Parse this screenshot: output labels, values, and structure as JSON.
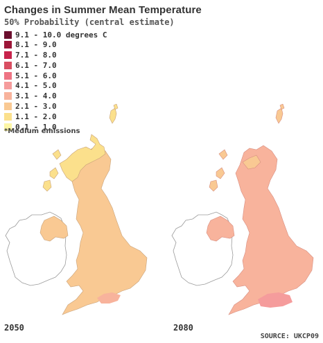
{
  "title": "Changes in Summer Mean Temperature",
  "subtitle": "50% Probability (central estimate)",
  "legend": [
    {
      "label": "9.1 - 10.0 degrees C",
      "color": "#6b0f2e"
    },
    {
      "label": "8.1 - 9.0",
      "color": "#9c1638"
    },
    {
      "label": "7.1 - 8.0",
      "color": "#c7234b"
    },
    {
      "label": "6.1 - 7.0",
      "color": "#d94e62"
    },
    {
      "label": "5.1 - 6.0",
      "color": "#ee7484"
    },
    {
      "label": "4.1 - 5.0",
      "color": "#f59c9c"
    },
    {
      "label": "3.1 - 4.0",
      "color": "#f8b39c"
    },
    {
      "label": "2.1 - 3.0",
      "color": "#f9c993"
    },
    {
      "label": "1.1 - 2.0",
      "color": "#fbe08c"
    },
    {
      "label": "0.1 - 1.0",
      "color": "#fdf6a6"
    }
  ],
  "note": "*Medium emissions",
  "maps": [
    {
      "year": "2050",
      "main_color": "#f9c993",
      "scotland_hi_color": "#fbe08c",
      "hotspot_color": "#f8b39c"
    },
    {
      "year": "2080",
      "main_color": "#f8b39c",
      "scotland_hi_color": "#f9c993",
      "hotspot_color": "#f59c9c"
    }
  ],
  "source": "SOURCE: UKCP09"
}
